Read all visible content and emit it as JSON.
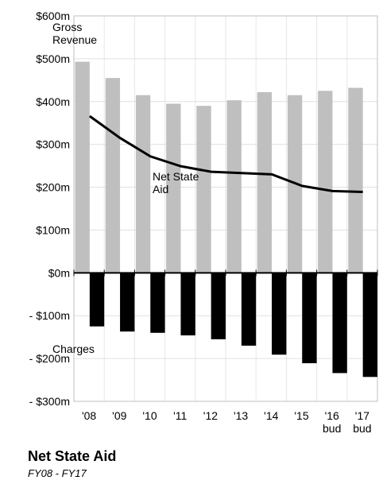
{
  "chart_data": {
    "type": "bar-line",
    "title": "Net State Aid",
    "subtitle": "FY08 - FY17",
    "categories": [
      "'08",
      "'09",
      "'10",
      "'11",
      "'12",
      "'13",
      "'14",
      "'15",
      "'16\nbud",
      "'17\nbud"
    ],
    "series": [
      {
        "name": "Gross\nRevenue",
        "type": "bar",
        "color": "#bfbfbf",
        "values": [
          493,
          455,
          415,
          395,
          390,
          403,
          422,
          415,
          425,
          432
        ]
      },
      {
        "name": "Charges",
        "type": "bar",
        "color": "#000000",
        "values": [
          -125,
          -137,
          -140,
          -146,
          -155,
          -170,
          -191,
          -211,
          -234,
          -243
        ]
      },
      {
        "name": "Net State\nAid",
        "type": "line",
        "color": "#000000",
        "values": [
          366,
          315,
          272,
          249,
          236,
          233,
          230,
          203,
          191,
          189
        ]
      }
    ],
    "ylim": [
      -300,
      600
    ],
    "yticks": [
      {
        "value": -300,
        "label": "- $300m"
      },
      {
        "value": -200,
        "label": "- $200m"
      },
      {
        "value": -100,
        "label": "- $100m"
      },
      {
        "value": 0,
        "label": "$0m"
      },
      {
        "value": 100,
        "label": "$100m"
      },
      {
        "value": 200,
        "label": "$200m"
      },
      {
        "value": 300,
        "label": "$300m"
      },
      {
        "value": 400,
        "label": "$400m"
      },
      {
        "value": 500,
        "label": "$500m"
      },
      {
        "value": 600,
        "label": "$600m"
      }
    ],
    "grid": true
  }
}
